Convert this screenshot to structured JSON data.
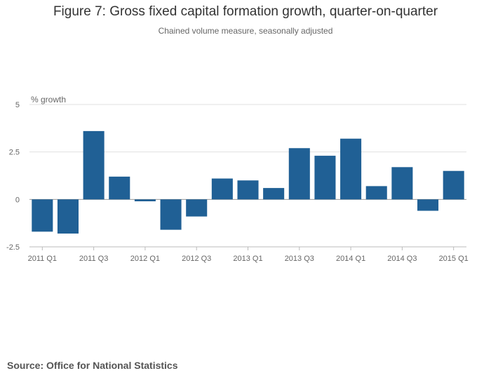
{
  "figure": {
    "title": "Figure 7: Gross fixed capital formation growth, quarter-on-quarter",
    "subtitle": "Chained volume measure, seasonally adjusted",
    "source": "Source: Office for National Statistics"
  },
  "chart_data": {
    "type": "bar",
    "title": "Figure 7: Gross fixed capital formation growth, quarter-on-quarter",
    "subtitle": "Chained volume measure, seasonally adjusted",
    "ylabel": "% growth",
    "xlabel": "",
    "ylim": [
      -2.5,
      5
    ],
    "yticks": [
      -2.5,
      0,
      2.5,
      5
    ],
    "ytick_labels": [
      "-2.5",
      "0",
      "2.5",
      "5"
    ],
    "grid": true,
    "bar_color": "#206095",
    "categories": [
      "2011 Q1",
      "2011 Q2",
      "2011 Q3",
      "2011 Q4",
      "2012 Q1",
      "2012 Q2",
      "2012 Q3",
      "2012 Q4",
      "2013 Q1",
      "2013 Q2",
      "2013 Q3",
      "2013 Q4",
      "2014 Q1",
      "2014 Q2",
      "2014 Q3",
      "2014 Q4",
      "2015 Q1"
    ],
    "tick_labels": [
      "2011 Q1",
      "",
      "2011 Q3",
      "",
      "2012 Q1",
      "",
      "2012 Q3",
      "",
      "2013 Q1",
      "",
      "2013 Q3",
      "",
      "2014 Q1",
      "",
      "2014 Q3",
      "",
      "2015 Q1"
    ],
    "values": [
      -1.7,
      -1.8,
      3.6,
      1.2,
      -0.1,
      -1.6,
      -0.9,
      1.1,
      1.0,
      0.6,
      2.7,
      2.3,
      3.2,
      0.7,
      1.7,
      -0.6,
      1.5
    ]
  }
}
